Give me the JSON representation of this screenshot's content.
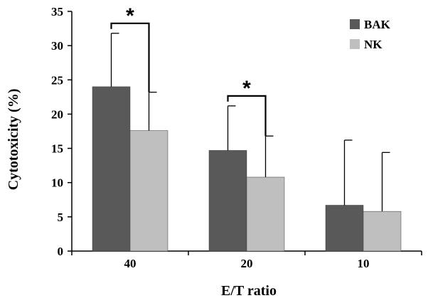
{
  "chart_data": {
    "type": "bar",
    "xlabel": "E/T ratio",
    "ylabel": "Cytotoxicity (%)",
    "categories": [
      "40",
      "20",
      "10"
    ],
    "ylim": [
      0,
      35
    ],
    "yticks": [
      0,
      5,
      10,
      15,
      20,
      25,
      30,
      35
    ],
    "grid": false,
    "legend_position": "top-right",
    "series": [
      {
        "name": "BAK",
        "color": "#595959",
        "values": [
          24,
          14.7,
          6.7
        ],
        "errors": [
          7.8,
          6.5,
          9.5
        ]
      },
      {
        "name": "NK",
        "color": "#bfbfbf",
        "values": [
          17.6,
          10.8,
          5.8
        ],
        "errors": [
          5.6,
          6.0,
          8.6
        ]
      }
    ],
    "significance": [
      {
        "category": "40",
        "label": "*"
      },
      {
        "category": "20",
        "label": "*"
      }
    ]
  }
}
